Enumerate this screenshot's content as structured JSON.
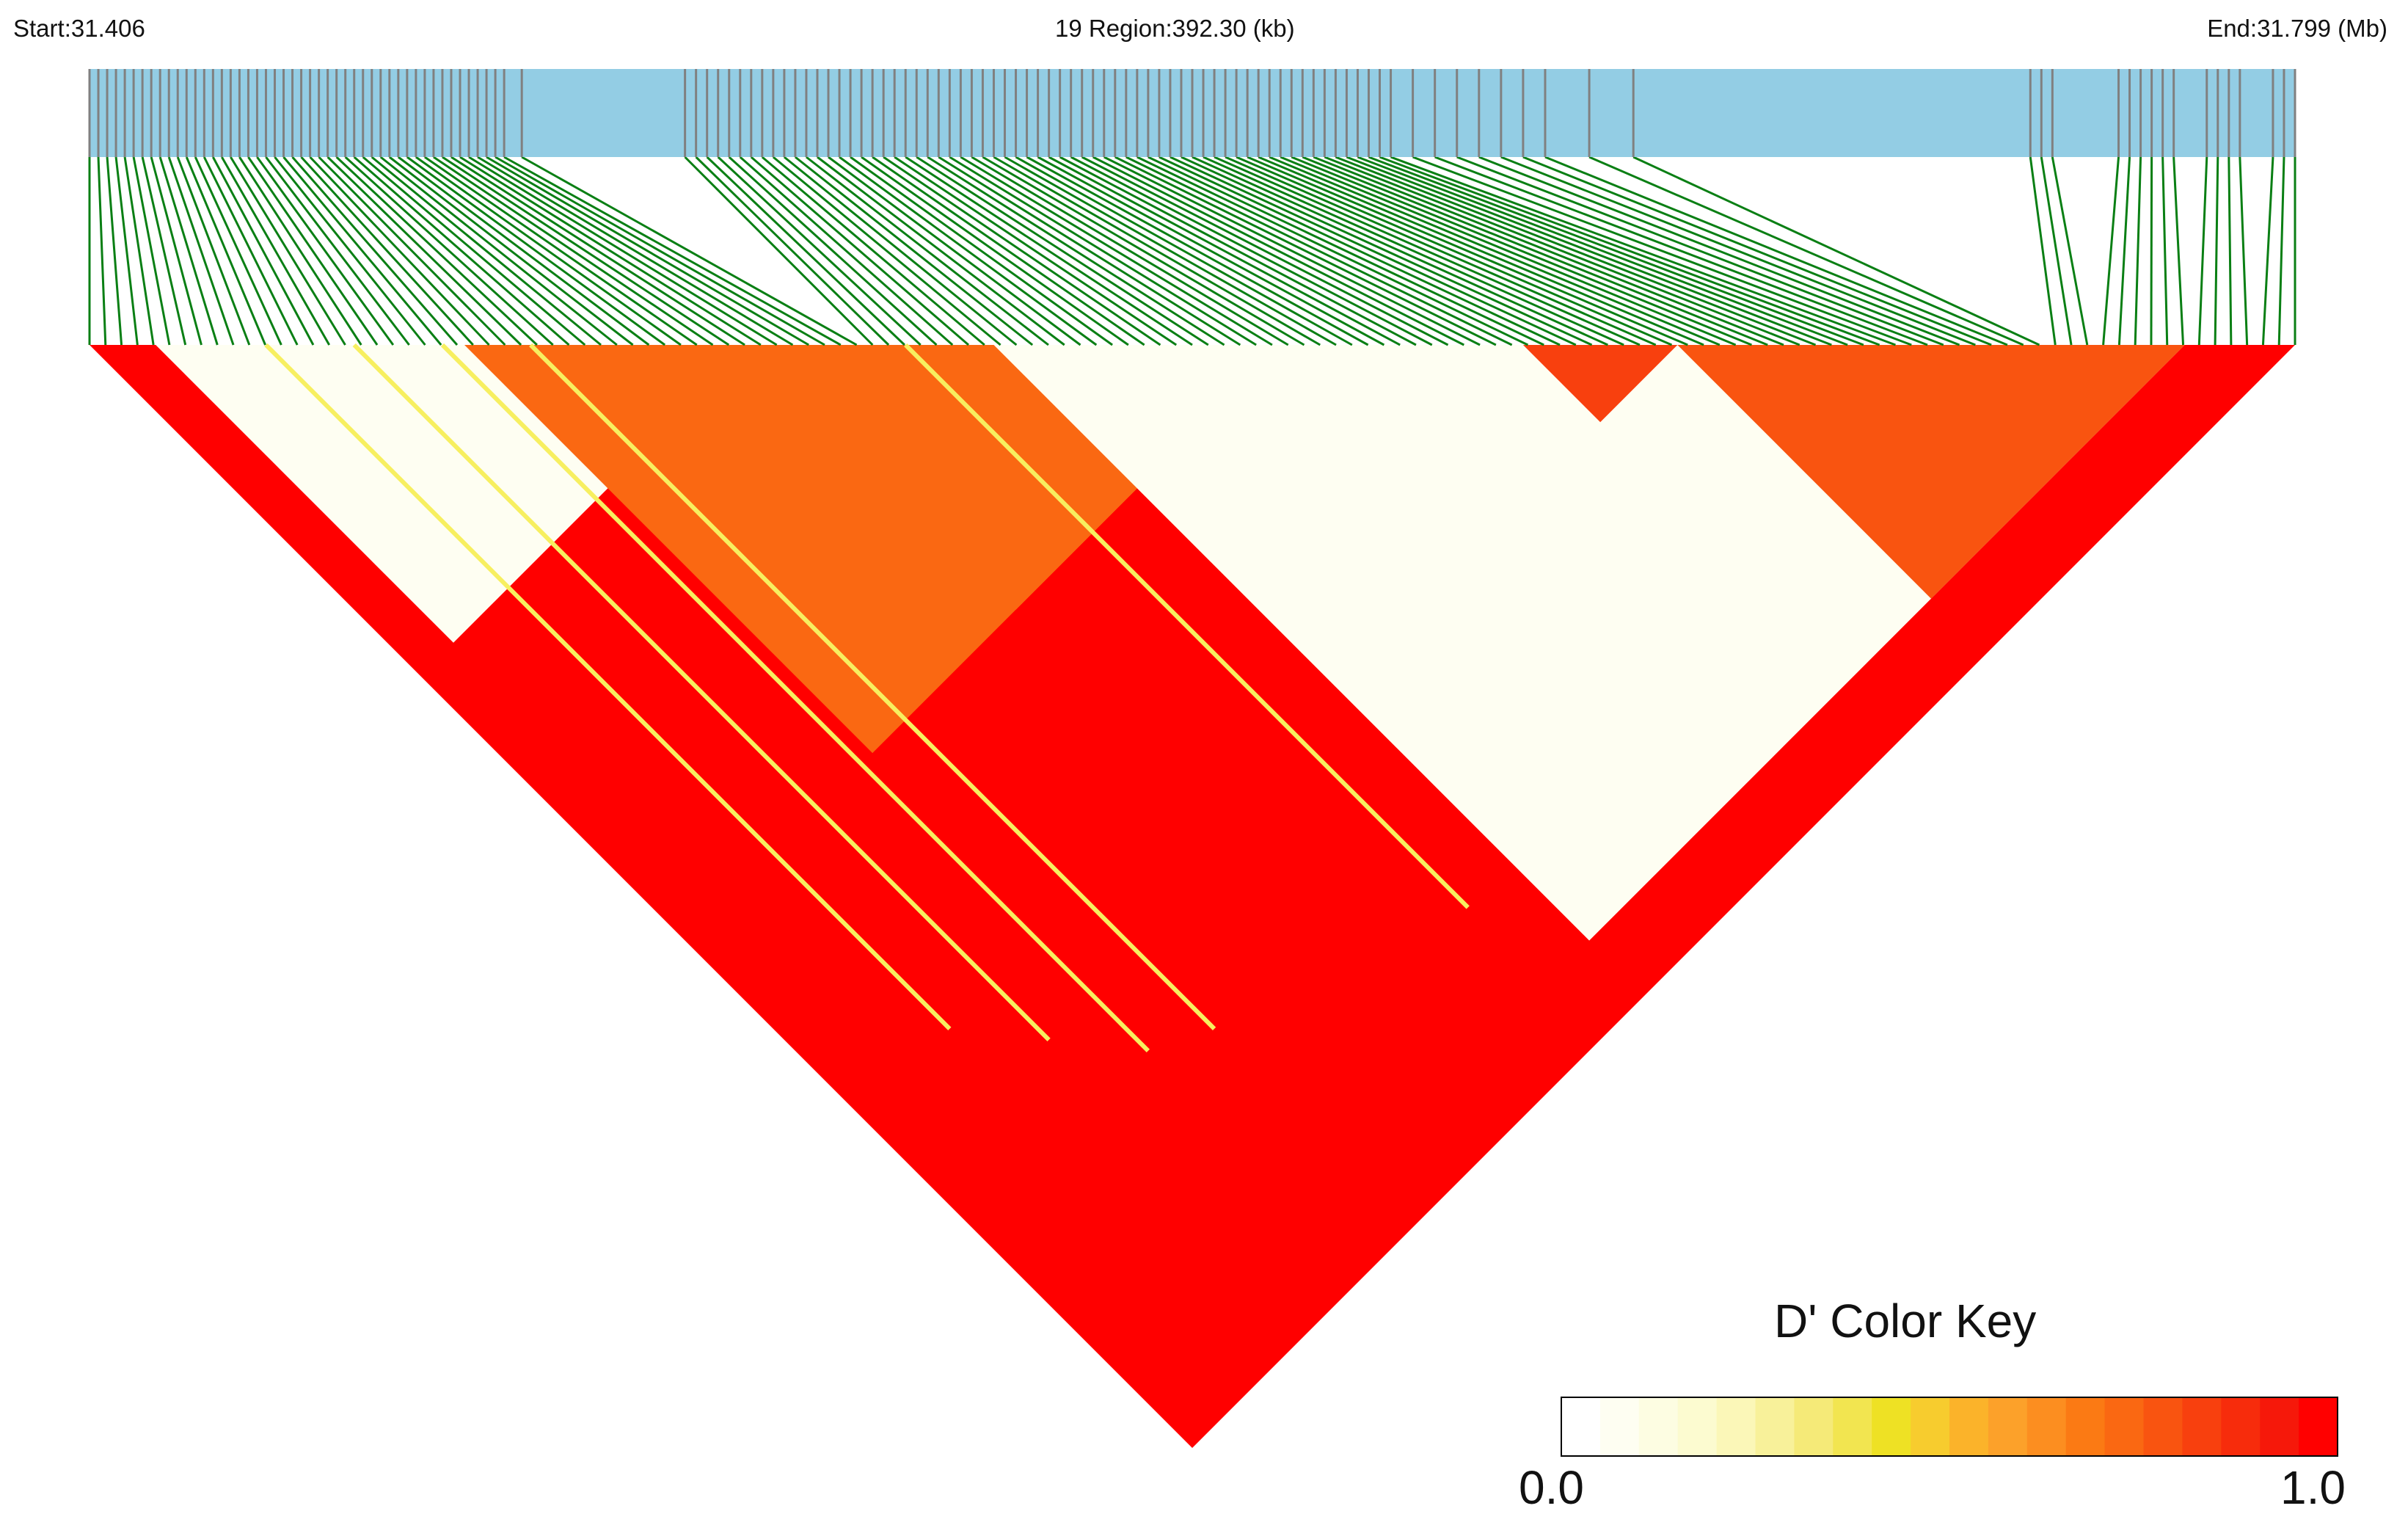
{
  "header": {
    "start_label": "Start:31.406",
    "region_label": "19 Region:392.30 (kb)",
    "end_label": "End:31.799 (Mb)"
  },
  "colors": {
    "snp_track": "#93cde4",
    "snp_tick": "#808080",
    "connector": "#0a7f14",
    "ld_high": "#ff0000",
    "ld_orange": "#fa7614",
    "ld_yellow": "#f7ef60",
    "ld_pale": "#fdfde8",
    "background": "#ffffff"
  },
  "color_key": {
    "title": "D' Color Key",
    "min_label": "0.0",
    "max_label": "1.0",
    "colors": [
      "#ffffff",
      "#fefef2",
      "#fdfde2",
      "#fcfbd0",
      "#fbf7b8",
      "#f8f19a",
      "#f5ea78",
      "#f2e550",
      "#eee124",
      "#f7cc2e",
      "#fbb32a",
      "#fca12a",
      "#fc8e20",
      "#fb7a14",
      "#fa6812",
      "#f95410",
      "#f8400e",
      "#f72c0c",
      "#f6180a",
      "#ff0000"
    ]
  },
  "chart_data": {
    "type": "heatmap",
    "title": "",
    "chromosome": "19",
    "region_start_mb": 31.406,
    "region_end_mb": 31.799,
    "region_length_kb": 392.3,
    "measure": "D'",
    "value_range": [
      0.0,
      1.0
    ],
    "snp_positions_fraction": [
      0.0,
      0.004,
      0.008,
      0.012,
      0.016,
      0.02,
      0.024,
      0.028,
      0.032,
      0.036,
      0.04,
      0.044,
      0.048,
      0.052,
      0.056,
      0.06,
      0.064,
      0.068,
      0.072,
      0.076,
      0.08,
      0.084,
      0.088,
      0.092,
      0.096,
      0.1,
      0.104,
      0.108,
      0.112,
      0.116,
      0.12,
      0.124,
      0.128,
      0.132,
      0.136,
      0.14,
      0.144,
      0.148,
      0.152,
      0.156,
      0.16,
      0.164,
      0.168,
      0.172,
      0.176,
      0.18,
      0.184,
      0.188,
      0.196,
      0.27,
      0.275,
      0.28,
      0.285,
      0.29,
      0.295,
      0.3,
      0.305,
      0.31,
      0.315,
      0.32,
      0.325,
      0.33,
      0.335,
      0.34,
      0.345,
      0.35,
      0.355,
      0.36,
      0.365,
      0.37,
      0.375,
      0.38,
      0.385,
      0.39,
      0.395,
      0.4,
      0.405,
      0.41,
      0.415,
      0.42,
      0.425,
      0.43,
      0.435,
      0.44,
      0.445,
      0.45,
      0.455,
      0.46,
      0.465,
      0.47,
      0.475,
      0.48,
      0.485,
      0.49,
      0.495,
      0.5,
      0.505,
      0.51,
      0.515,
      0.52,
      0.525,
      0.53,
      0.535,
      0.54,
      0.545,
      0.55,
      0.555,
      0.56,
      0.565,
      0.57,
      0.575,
      0.58,
      0.585,
      0.59,
      0.6,
      0.61,
      0.62,
      0.63,
      0.64,
      0.65,
      0.66,
      0.68,
      0.7,
      0.88,
      0.885,
      0.89,
      0.92,
      0.925,
      0.93,
      0.935,
      0.94,
      0.945,
      0.96,
      0.965,
      0.97,
      0.975,
      0.99,
      0.995,
      1.0
    ],
    "blocks": [
      {
        "x0": 0.0,
        "x1": 1.0,
        "value": 1.0
      },
      {
        "x0": 0.03,
        "x1": 0.3,
        "value": 0.05
      },
      {
        "x0": 0.3,
        "x1": 0.54,
        "value": 0.45
      },
      {
        "x0": 0.17,
        "x1": 0.54,
        "value": 0.75
      },
      {
        "x0": 0.41,
        "x1": 0.72,
        "value": 0.75
      },
      {
        "x0": 0.41,
        "x1": 0.95,
        "value": 0.05
      },
      {
        "x0": 0.72,
        "x1": 0.95,
        "value": 0.8
      },
      {
        "x0": 0.65,
        "x1": 0.72,
        "value": 0.85
      }
    ]
  }
}
